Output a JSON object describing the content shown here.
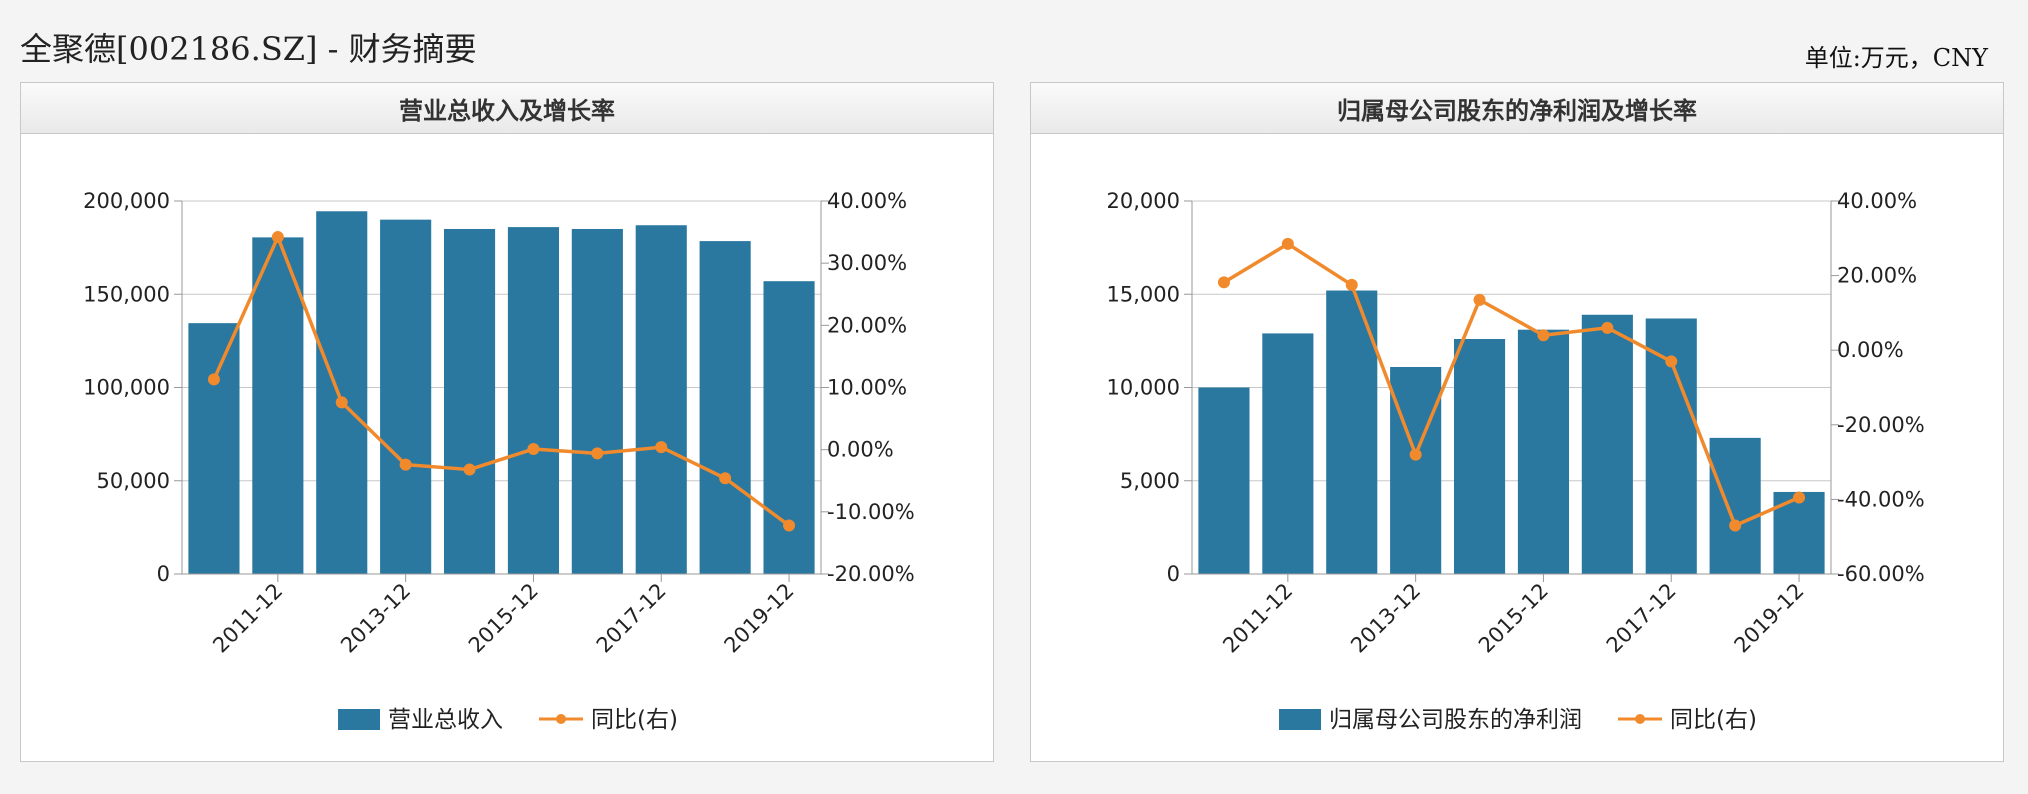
{
  "page": {
    "title": "全聚德[002186.SZ] - 财务摘要",
    "unit": "单位:万元，CNY"
  },
  "colors": {
    "bar": "#2a78a0",
    "line": "#f08a2c",
    "grid": "#c8c8c8",
    "axis": "#999999"
  },
  "chart_data": [
    {
      "type": "bar",
      "title": "营业总收入及增长率",
      "categories": [
        "2010-12",
        "2011-12",
        "2012-12",
        "2013-12",
        "2014-12",
        "2015-12",
        "2016-12",
        "2017-12",
        "2018-12",
        "2019-12"
      ],
      "x_tick_labels": [
        "2011-12",
        "2013-12",
        "2015-12",
        "2017-12",
        "2019-12"
      ],
      "series": [
        {
          "name": "营业总收入",
          "type": "bar",
          "axis": "left",
          "values": [
            134500,
            180500,
            194500,
            190000,
            185000,
            186000,
            185000,
            187000,
            178500,
            157000
          ]
        },
        {
          "name": "同比(右)",
          "type": "line",
          "axis": "right",
          "values": [
            11.3,
            34.2,
            7.6,
            -2.4,
            -3.2,
            0.1,
            -0.6,
            0.4,
            -4.6,
            -12.2
          ]
        }
      ],
      "left_axis": {
        "min": 0,
        "max": 200000,
        "ticks": [
          0,
          50000,
          100000,
          150000,
          200000
        ],
        "tick_labels": [
          "0",
          "50,000",
          "100,000",
          "150,000",
          "200,000"
        ]
      },
      "right_axis": {
        "min": -20,
        "max": 40,
        "ticks": [
          -20,
          -10,
          0,
          10,
          20,
          30,
          40
        ],
        "tick_labels": [
          "-20.00%",
          "-10.00%",
          "0.00%",
          "10.00%",
          "20.00%",
          "30.00%",
          "40.00%"
        ]
      },
      "grid": true,
      "legend": "bottom"
    },
    {
      "type": "bar",
      "title": "归属母公司股东的净利润及增长率",
      "categories": [
        "2010-12",
        "2011-12",
        "2012-12",
        "2013-12",
        "2014-12",
        "2015-12",
        "2016-12",
        "2017-12",
        "2018-12",
        "2019-12"
      ],
      "x_tick_labels": [
        "2011-12",
        "2013-12",
        "2015-12",
        "2017-12",
        "2019-12"
      ],
      "series": [
        {
          "name": "归属母公司股东的净利润",
          "type": "bar",
          "axis": "left",
          "values": [
            10000,
            12900,
            15200,
            11100,
            12600,
            13100,
            13900,
            13700,
            7300,
            4400
          ]
        },
        {
          "name": "同比(右)",
          "type": "line",
          "axis": "right",
          "values": [
            18.2,
            28.5,
            17.5,
            -28.0,
            13.5,
            4.0,
            6.0,
            -3.0,
            -47.0,
            -39.5
          ]
        }
      ],
      "left_axis": {
        "min": 0,
        "max": 20000,
        "ticks": [
          0,
          5000,
          10000,
          15000,
          20000
        ],
        "tick_labels": [
          "0",
          "5,000",
          "10,000",
          "15,000",
          "20,000"
        ]
      },
      "right_axis": {
        "min": -60,
        "max": 40,
        "ticks": [
          -60,
          -40,
          -20,
          0,
          20,
          40
        ],
        "tick_labels": [
          "-60.00%",
          "-40.00%",
          "-20.00%",
          "0.00%",
          "20.00%",
          "40.00%"
        ]
      },
      "grid": true,
      "legend": "bottom"
    }
  ]
}
